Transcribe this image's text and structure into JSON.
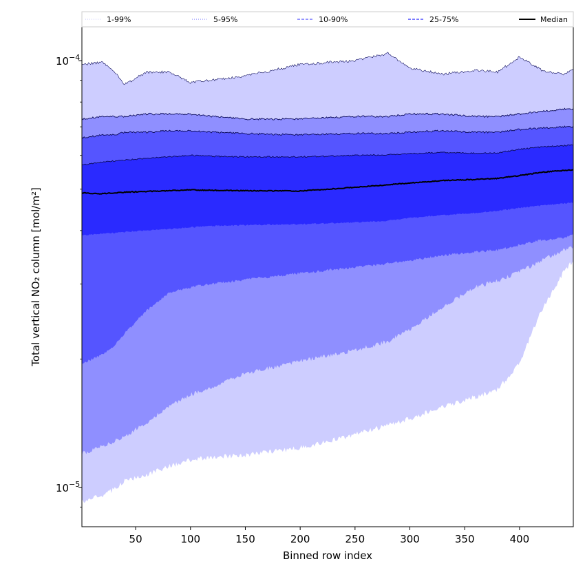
{
  "chart_data": {
    "type": "area",
    "title": "",
    "xlabel": "Binned row index",
    "ylabel": "Total vertical NO₂ column [mol/m²]",
    "xlim": [
      1,
      449
    ],
    "ylim": [
      8.1e-06,
      0.00012
    ],
    "yscale": "log",
    "x_ticks": [
      50,
      100,
      150,
      200,
      250,
      300,
      350,
      400
    ],
    "x_tick_labels": [
      "50",
      "100",
      "150",
      "200",
      "250",
      "300",
      "350",
      "400"
    ],
    "y_major_ticks": [
      1e-05,
      0.0001
    ],
    "y_tick_base": "10",
    "y_tick_exponents": [
      "−5",
      "−4"
    ],
    "legend_position": "top, above plot",
    "x": [
      1,
      20,
      30,
      40,
      60,
      80,
      100,
      120,
      150,
      200,
      250,
      280,
      300,
      330,
      360,
      380,
      400,
      420,
      440,
      449
    ],
    "bands": [
      {
        "label": "1-99%",
        "color": "#cdcdff",
        "low": [
          9.3e-06,
          9.6e-06,
          9.9e-06,
          1.04e-05,
          1.07e-05,
          1.12e-05,
          1.16e-05,
          1.18e-05,
          1.19e-05,
          1.24e-05,
          1.33e-05,
          1.4e-05,
          1.45e-05,
          1.55e-05,
          1.63e-05,
          1.7e-05,
          1.95e-05,
          2.6e-05,
          3.2e-05,
          3.4e-05
        ],
        "high": [
          9.8e-05,
          9.9e-05,
          9.5e-05,
          8.8e-05,
          9.4e-05,
          9.4e-05,
          8.9e-05,
          9e-05,
          9.2e-05,
          9.8e-05,
          0.0001,
          0.000104,
          9.6e-05,
          9.3e-05,
          9.5e-05,
          9.4e-05,
          0.000102,
          9.5e-05,
          9.3e-05,
          9.5e-05
        ]
      },
      {
        "label": "5-95%",
        "color": "#8f8fff",
        "low": [
          1.2e-05,
          1.25e-05,
          1.28e-05,
          1.32e-05,
          1.42e-05,
          1.55e-05,
          1.65e-05,
          1.72e-05,
          1.85e-05,
          1.98e-05,
          2.1e-05,
          2.2e-05,
          2.35e-05,
          2.65e-05,
          2.95e-05,
          3.05e-05,
          3.2e-05,
          3.4e-05,
          3.6e-05,
          3.65e-05
        ],
        "high": [
          7.3e-05,
          7.4e-05,
          7.4e-05,
          7.4e-05,
          7.5e-05,
          7.5e-05,
          7.5e-05,
          7.4e-05,
          7.3e-05,
          7.3e-05,
          7.4e-05,
          7.4e-05,
          7.5e-05,
          7.5e-05,
          7.4e-05,
          7.4e-05,
          7.5e-05,
          7.6e-05,
          7.7e-05,
          7.7e-05
        ]
      },
      {
        "label": "10-90%",
        "color": "#5555ff",
        "low": [
          1.95e-05,
          2.05e-05,
          2.15e-05,
          2.3e-05,
          2.6e-05,
          2.85e-05,
          2.95e-05,
          3e-05,
          3.07e-05,
          3.18e-05,
          3.28e-05,
          3.35e-05,
          3.4e-05,
          3.5e-05,
          3.57e-05,
          3.6e-05,
          3.7e-05,
          3.8e-05,
          3.85e-05,
          3.9e-05
        ],
        "high": [
          6.6e-05,
          6.7e-05,
          6.7e-05,
          6.8e-05,
          6.8e-05,
          6.85e-05,
          6.85e-05,
          6.8e-05,
          6.75e-05,
          6.7e-05,
          6.75e-05,
          6.75e-05,
          6.8e-05,
          6.85e-05,
          6.8e-05,
          6.8e-05,
          6.9e-05,
          6.95e-05,
          7e-05,
          7e-05
        ]
      },
      {
        "label": "25-75%",
        "color": "#2a2aff",
        "low": [
          3.9e-05,
          3.93e-05,
          3.95e-05,
          3.97e-05,
          4e-05,
          4.03e-05,
          4.07e-05,
          4.1e-05,
          4.12e-05,
          4.14e-05,
          4.18e-05,
          4.22e-05,
          4.28e-05,
          4.35e-05,
          4.4e-05,
          4.45e-05,
          4.52e-05,
          4.58e-05,
          4.63e-05,
          4.65e-05
        ],
        "high": [
          5.7e-05,
          5.78e-05,
          5.82e-05,
          5.85e-05,
          5.9e-05,
          5.95e-05,
          6e-05,
          5.97e-05,
          5.95e-05,
          5.95e-05,
          6e-05,
          6.02e-05,
          6.05e-05,
          6.1e-05,
          6.07e-05,
          6.08e-05,
          6.2e-05,
          6.28e-05,
          6.32e-05,
          6.35e-05
        ]
      }
    ],
    "median": {
      "label": "Median",
      "color": "#000000",
      "values": [
        4.9e-05,
        4.88e-05,
        4.9e-05,
        4.92e-05,
        4.94e-05,
        4.96e-05,
        4.98e-05,
        4.97e-05,
        4.96e-05,
        4.95e-05,
        5.05e-05,
        5.12e-05,
        5.17e-05,
        5.24e-05,
        5.27e-05,
        5.3e-05,
        5.38e-05,
        5.48e-05,
        5.53e-05,
        5.55e-05
      ]
    },
    "legend": [
      {
        "label": "1-99%",
        "color": "#cdcdff",
        "style": "dotted"
      },
      {
        "label": "5-95%",
        "color": "#8f8fff",
        "style": "dotted"
      },
      {
        "label": "10-90%",
        "color": "#5555ff",
        "style": "dashed"
      },
      {
        "label": "25-75%",
        "color": "#2a2aff",
        "style": "dashed"
      },
      {
        "label": "Median",
        "color": "#000000",
        "style": "solid"
      }
    ]
  }
}
